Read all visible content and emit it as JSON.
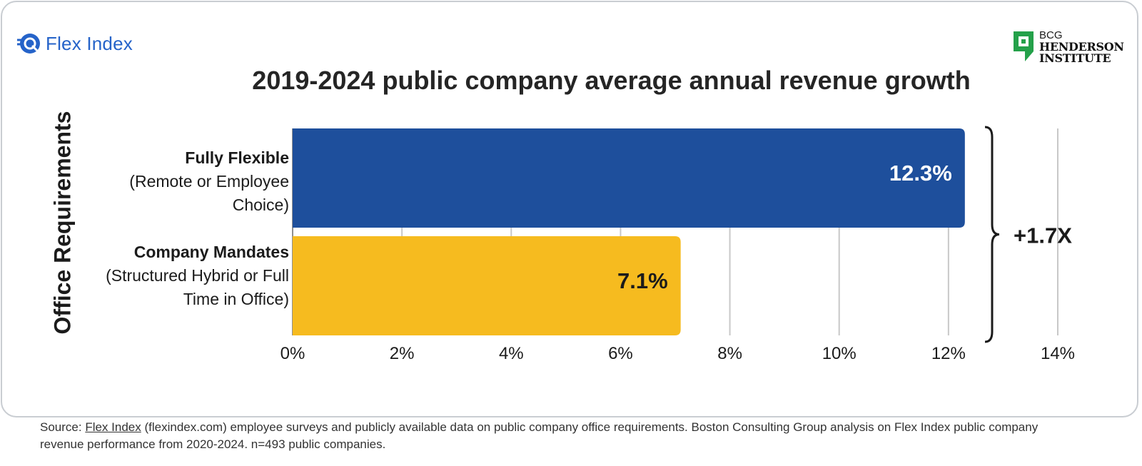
{
  "brand": {
    "name": "Flex Index"
  },
  "partner": {
    "line1": "BCG",
    "line2": "HENDERSON",
    "line3": "INSTITUTE"
  },
  "chart_data": {
    "type": "bar",
    "orientation": "horizontal",
    "title": "2019-2024 public company average annual revenue growth",
    "ylabel": "Office Requirements",
    "xlabel": "",
    "xlim": [
      0,
      14
    ],
    "ticks": [
      0,
      2,
      4,
      6,
      8,
      10,
      12,
      14
    ],
    "tick_labels": [
      "0%",
      "2%",
      "4%",
      "6%",
      "8%",
      "10%",
      "12%",
      "14%"
    ],
    "categories": [
      {
        "name": "Fully Flexible",
        "sub_line1": "(Remote or Employee",
        "sub_line2": "Choice)",
        "value": 12.3,
        "label": "12.3%",
        "color": "#1e4f9c",
        "label_color": "#ffffff"
      },
      {
        "name": "Company Mandates",
        "sub_line1": "(Structured Hybrid or Full",
        "sub_line2": "Time in Office)",
        "value": 7.1,
        "label": "7.1%",
        "color": "#f6bb1f",
        "label_color": "#1b1b1b"
      }
    ],
    "annotation": "+1.7X",
    "grid": true
  },
  "source": {
    "prefix": "Source: ",
    "link": "Flex Index",
    "text": " (flexindex.com) employee surveys and publicly available data on public company office requirements. Boston Consulting Group analysis on Flex Index public company revenue performance from 2020-2024. n=493 public companies."
  }
}
